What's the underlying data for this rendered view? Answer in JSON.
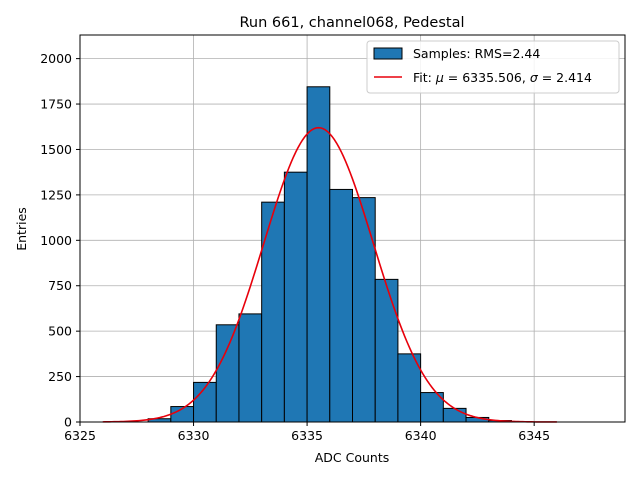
{
  "chart_data": {
    "type": "bar",
    "title": "Run 661, channel068, Pedestal",
    "xlabel": "ADC Counts",
    "ylabel": "Entries",
    "xlim": [
      6325,
      6349
    ],
    "ylim": [
      0,
      2130
    ],
    "grid": true,
    "legend_position": "top-right",
    "x_ticks": [
      6325,
      6330,
      6335,
      6340,
      6345
    ],
    "x_tick_labels": [
      "6325",
      "6330",
      "6335",
      "6340",
      "6345"
    ],
    "y_ticks": [
      0,
      250,
      500,
      750,
      1000,
      1250,
      1500,
      1750,
      2000
    ],
    "y_tick_labels": [
      "0",
      "250",
      "500",
      "750",
      "1000",
      "1250",
      "1500",
      "1750",
      "2000"
    ],
    "bin_width": 1,
    "bins": [
      {
        "left": 6328,
        "value": 18
      },
      {
        "left": 6329,
        "value": 85
      },
      {
        "left": 6330,
        "value": 218
      },
      {
        "left": 6331,
        "value": 535
      },
      {
        "left": 6332,
        "value": 595
      },
      {
        "left": 6333,
        "value": 1210
      },
      {
        "left": 6334,
        "value": 1375
      },
      {
        "left": 6335,
        "value": 1845
      },
      {
        "left": 6336,
        "value": 1280
      },
      {
        "left": 6337,
        "value": 1235
      },
      {
        "left": 6338,
        "value": 785
      },
      {
        "left": 6339,
        "value": 375
      },
      {
        "left": 6340,
        "value": 162
      },
      {
        "left": 6341,
        "value": 75
      },
      {
        "left": 6342,
        "value": 25
      },
      {
        "left": 6343,
        "value": 8
      }
    ],
    "fit": {
      "mu": 6335.506,
      "sigma": 2.414,
      "peak": 1620,
      "x_range": [
        6326,
        6346
      ]
    },
    "bar_color": "#1f77b4",
    "fit_color": "#e8000b",
    "legend": [
      {
        "label": "Samples: RMS=2.44",
        "kind": "patch"
      },
      {
        "label_prefix": "Fit: ",
        "mu_symbol": "μ",
        "mu_text": " = 6335.506, ",
        "sigma_symbol": "σ",
        "sigma_text": " = 2.414",
        "kind": "line"
      }
    ]
  }
}
